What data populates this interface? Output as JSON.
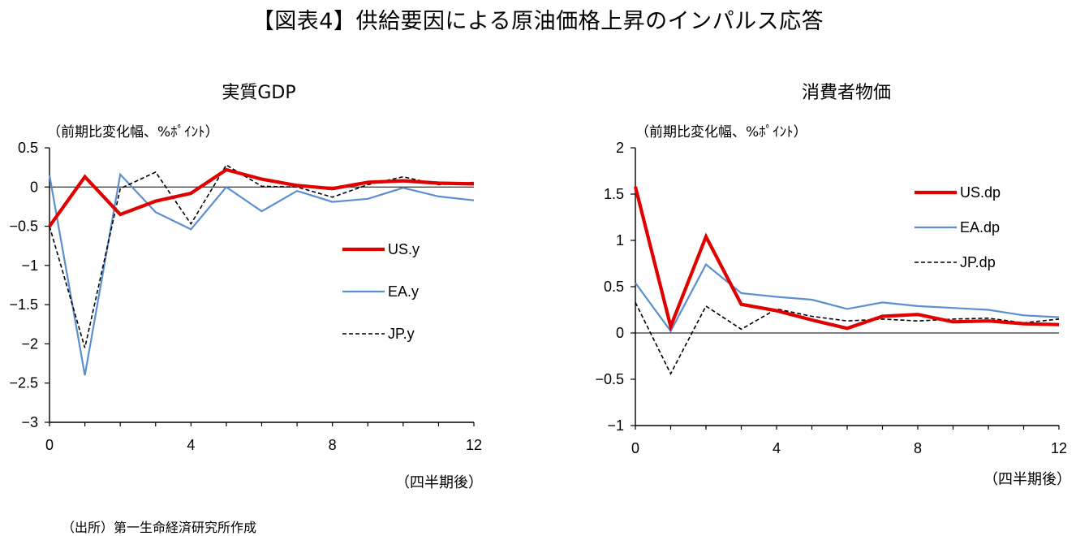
{
  "title": "【図表4】供給要因による原油価格上昇のインパルス応答",
  "source": "（出所）第一生命経済研究所作成",
  "colors": {
    "US": "#e00000",
    "EA": "#5b8fd0",
    "JP": "#000000"
  },
  "chart_data": [
    {
      "type": "line",
      "title": "実質GDP",
      "ylabel": "（前期比変化幅、%ﾎﾟｲﾝﾄ）",
      "xlabel": "（四半期後）",
      "xlim": [
        0,
        12
      ],
      "ylim": [
        -3,
        0.5
      ],
      "xticks": [
        0,
        4,
        8,
        12
      ],
      "xtick_labels": [
        "0",
        "4",
        "8",
        "12"
      ],
      "yticks": [
        0.5,
        0,
        -0.5,
        -1,
        -1.5,
        -2,
        -2.5,
        -3
      ],
      "ytick_labels": [
        "0.5",
        "0",
        "−0.5",
        "−1",
        "−1.5",
        "−2",
        "−2.5",
        "−3"
      ],
      "legend_position": "right",
      "x": [
        0,
        1,
        2,
        3,
        4,
        5,
        6,
        7,
        8,
        9,
        10,
        11,
        12
      ],
      "series": [
        {
          "name": "US.y",
          "style": "thick-red",
          "values": [
            -0.5,
            0.13,
            -0.35,
            -0.18,
            -0.08,
            0.22,
            0.1,
            0.02,
            -0.02,
            0.06,
            0.08,
            0.05,
            0.04
          ]
        },
        {
          "name": "EA.y",
          "style": "blue",
          "values": [
            0.15,
            -2.4,
            0.16,
            -0.32,
            -0.54,
            0.0,
            -0.31,
            -0.05,
            -0.19,
            -0.15,
            -0.01,
            -0.12,
            -0.17
          ]
        },
        {
          "name": "JP.y",
          "style": "black-dashed",
          "values": [
            -0.5,
            -2.05,
            -0.02,
            0.19,
            -0.47,
            0.28,
            0.01,
            0.0,
            -0.13,
            0.03,
            0.13,
            0.03,
            0.06
          ]
        }
      ]
    },
    {
      "type": "line",
      "title": "消費者物価",
      "ylabel": "（前期比変化幅、%ﾎﾟｲﾝﾄ）",
      "xlabel": "（四半期後）",
      "xlim": [
        0,
        12
      ],
      "ylim": [
        -1,
        2
      ],
      "xticks": [
        0,
        4,
        8,
        12
      ],
      "xtick_labels": [
        "0",
        "4",
        "8",
        "12"
      ],
      "yticks": [
        2,
        1.5,
        1,
        0.5,
        0,
        -0.5,
        -1
      ],
      "ytick_labels": [
        "2",
        "1.5",
        "1",
        "0.5",
        "0",
        "−0.5",
        "−1"
      ],
      "legend_position": "upper-right",
      "x": [
        0,
        1,
        2,
        3,
        4,
        5,
        6,
        7,
        8,
        9,
        10,
        11,
        12
      ],
      "series": [
        {
          "name": "US.dp",
          "style": "thick-red",
          "values": [
            1.58,
            0.07,
            1.04,
            0.31,
            0.24,
            0.14,
            0.05,
            0.18,
            0.2,
            0.12,
            0.13,
            0.1,
            0.09
          ]
        },
        {
          "name": "EA.dp",
          "style": "blue",
          "values": [
            0.54,
            0.02,
            0.74,
            0.43,
            0.39,
            0.36,
            0.26,
            0.33,
            0.29,
            0.27,
            0.25,
            0.19,
            0.17
          ]
        },
        {
          "name": "JP.dp",
          "style": "black-dashed",
          "values": [
            0.33,
            -0.44,
            0.29,
            0.04,
            0.26,
            0.18,
            0.13,
            0.15,
            0.13,
            0.15,
            0.16,
            0.11,
            0.15
          ]
        }
      ]
    }
  ]
}
